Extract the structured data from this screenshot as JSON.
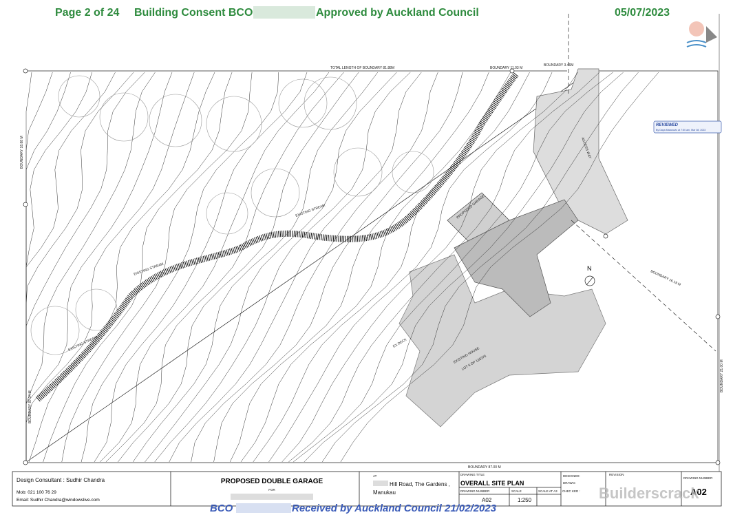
{
  "header": {
    "page": "Page 2 of 24",
    "consent_prefix": "Building Consent BCO",
    "consent_suffix": "Approved by Auckland Council",
    "date": "05/07/2023"
  },
  "plan": {
    "boundary_top": "TOTAL LENGTH OF BOUNDARY 81.88M",
    "boundary_top_right": "BOUNDARY 11.03 M",
    "boundary_access": "BOUNDARY 3.46M",
    "boundary_left": "BOUNDARY 18.88 M",
    "boundary_left_lower": "BOUNDARY 87.04 M",
    "boundary_bottom": "BOUNDARY 87.00 M",
    "boundary_right": "BOUNDARY 21.00 M",
    "boundary_diag": "BOUNDARY 16.19 M",
    "stream_1": "EXISTING STREAM",
    "stream_2": "EXISTING STREAM",
    "stream_3": "EXISTING STREAM",
    "garage": "PROPOSED GARAGE",
    "house": "EXISTING HOUSE",
    "lot": "LOT 6 DP 126376",
    "deck": "EX DECK",
    "access": "ACCESS WAY",
    "north": "N",
    "reviewed": "REVIEWED",
    "reviewed_by": "By Daya Maranovic at 7:50 am, Mar 08, 2023"
  },
  "title_block": {
    "consultant": "Design Consultant : Sudhir Chandra",
    "mobile": "Mob: 021 100 76 29",
    "email": "Email: Sudhir Chandra@windowslive.com",
    "project": "PROPOSED DOUBLE GARAGE",
    "for": "FOR",
    "at": "AT",
    "address_1": "Hill Road, The Gardens ,",
    "address_2": "Manukau",
    "drawing_title_label": "DRAWING TITLE",
    "drawing_title": "OVERALL SITE PLAN",
    "drawing_number_label": "DRAWING NUMBER",
    "drawing_number": "A02",
    "scale_label": "SCALE",
    "scale": "1:250",
    "scale_a3": "SCALE AT A3",
    "checked": "CHEC KED :",
    "designed": "DESIGNED:",
    "drawn": "DRAWN :",
    "revision": "REVISION",
    "drawing_number_label_2": "DRAWING NUMBER",
    "drawing_number_2": "A02"
  },
  "footer": {
    "prefix": "BCO",
    "received": "Received by Auckland Council 21/02/2023"
  },
  "watermark": "Builderscrack"
}
